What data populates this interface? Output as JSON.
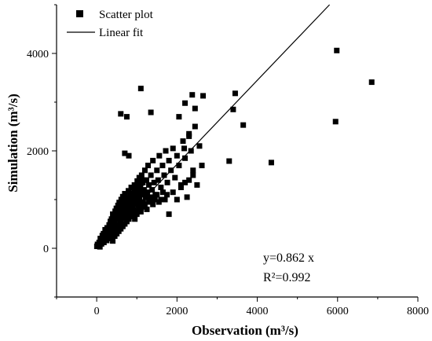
{
  "chart_data": {
    "type": "scatter",
    "xlabel": "Observation (m³/s)",
    "ylabel": "Simulation (m³/s)",
    "xlim": [
      -1000,
      8000
    ],
    "ylim": [
      -1000,
      5000
    ],
    "x_ticks": [
      0,
      2000,
      4000,
      6000,
      8000
    ],
    "y_ticks": [
      0,
      2000,
      4000
    ],
    "grid": false,
    "legend_position": "top-left",
    "legend": {
      "scatter_label": "Scatter plot",
      "fit_label": "Linear fit"
    },
    "fit": {
      "slope": 0.862,
      "equation": "y=0.862 x",
      "r2": "R²=0.992"
    },
    "series": [
      {
        "name": "Scatter plot",
        "marker": "square",
        "color": "#000000",
        "points": [
          [
            5,
            40
          ],
          [
            20,
            80
          ],
          [
            40,
            60
          ],
          [
            60,
            120
          ],
          [
            80,
            30
          ],
          [
            90,
            200
          ],
          [
            110,
            150
          ],
          [
            120,
            90
          ],
          [
            140,
            260
          ],
          [
            150,
            180
          ],
          [
            170,
            300
          ],
          [
            180,
            120
          ],
          [
            200,
            230
          ],
          [
            210,
            380
          ],
          [
            230,
            310
          ],
          [
            250,
            160
          ],
          [
            260,
            420
          ],
          [
            280,
            350
          ],
          [
            300,
            270
          ],
          [
            310,
            480
          ],
          [
            330,
            400
          ],
          [
            340,
            550
          ],
          [
            360,
            310
          ],
          [
            370,
            600
          ],
          [
            390,
            460
          ],
          [
            400,
            700
          ],
          [
            420,
            530
          ],
          [
            430,
            380
          ],
          [
            450,
            650
          ],
          [
            460,
            760
          ],
          [
            480,
            590
          ],
          [
            490,
            820
          ],
          [
            500,
            450
          ],
          [
            520,
            700
          ],
          [
            530,
            880
          ],
          [
            550,
            620
          ],
          [
            560,
            940
          ],
          [
            580,
            780
          ],
          [
            590,
            520
          ],
          [
            610,
            1000
          ],
          [
            620,
            840
          ],
          [
            640,
            690
          ],
          [
            650,
            1060
          ],
          [
            670,
            900
          ],
          [
            680,
            760
          ],
          [
            700,
            1120
          ],
          [
            710,
            960
          ],
          [
            730,
            820
          ],
          [
            740,
            600
          ],
          [
            760,
            1020
          ],
          [
            770,
            880
          ],
          [
            790,
            1180
          ],
          [
            800,
            700
          ],
          [
            820,
            950
          ],
          [
            830,
            1080
          ],
          [
            850,
            800
          ],
          [
            860,
            1250
          ],
          [
            880,
            1000
          ],
          [
            890,
            860
          ],
          [
            910,
            1130
          ],
          [
            920,
            680
          ],
          [
            940,
            1300
          ],
          [
            950,
            950
          ],
          [
            970,
            1200
          ],
          [
            980,
            780
          ],
          [
            1000,
            1050
          ],
          [
            1010,
            1380
          ],
          [
            1030,
            900
          ],
          [
            1040,
            1150
          ],
          [
            1060,
            1450
          ],
          [
            1070,
            1000
          ],
          [
            1090,
            1250
          ],
          [
            1100,
            820
          ],
          [
            1120,
            1500
          ],
          [
            1130,
            1100
          ],
          [
            1150,
            1350
          ],
          [
            1160,
            950
          ],
          [
            1180,
            1200
          ],
          [
            1200,
            1600
          ],
          [
            1220,
            1050
          ],
          [
            1240,
            1400
          ],
          [
            1260,
            1150
          ],
          [
            1280,
            1700
          ],
          [
            1300,
            1300
          ],
          [
            1320,
            1000
          ],
          [
            1350,
            1500
          ],
          [
            1380,
            1200
          ],
          [
            1400,
            1800
          ],
          [
            1430,
            1350
          ],
          [
            1460,
            1100
          ],
          [
            1500,
            1600
          ],
          [
            1530,
            1400
          ],
          [
            1560,
            1900
          ],
          [
            1600,
            1250
          ],
          [
            1640,
            1700
          ],
          [
            1680,
            1500
          ],
          [
            1720,
            2000
          ],
          [
            1760,
            1350
          ],
          [
            1800,
            1800
          ],
          [
            1850,
            1600
          ],
          [
            1900,
            2050
          ],
          [
            1950,
            1450
          ],
          [
            2000,
            1900
          ],
          [
            2050,
            1700
          ],
          [
            2100,
            1300
          ],
          [
            2150,
            2200
          ],
          [
            2200,
            1850
          ],
          [
            2250,
            1050
          ],
          [
            2300,
            2300
          ],
          [
            2350,
            2000
          ],
          [
            2400,
            1600
          ],
          [
            2450,
            2500
          ],
          [
            2500,
            1300
          ],
          [
            2560,
            2100
          ],
          [
            2620,
            1700
          ],
          [
            400,
            150
          ],
          [
            450,
            250
          ],
          [
            500,
            300
          ],
          [
            550,
            350
          ],
          [
            600,
            400
          ],
          [
            650,
            450
          ],
          [
            700,
            500
          ],
          [
            750,
            550
          ],
          [
            800,
            600
          ],
          [
            850,
            650
          ],
          [
            900,
            720
          ],
          [
            950,
            600
          ],
          [
            1000,
            700
          ],
          [
            1050,
            800
          ],
          [
            1100,
            750
          ],
          [
            1150,
            850
          ],
          [
            1200,
            900
          ],
          [
            1250,
            800
          ],
          [
            1300,
            950
          ],
          [
            1350,
            1050
          ],
          [
            1400,
            900
          ],
          [
            1450,
            1000
          ],
          [
            1500,
            1100
          ],
          [
            1550,
            950
          ],
          [
            1600,
            1000
          ],
          [
            1650,
            1150
          ],
          [
            1700,
            1000
          ],
          [
            1750,
            1100
          ],
          [
            1800,
            700
          ],
          [
            1900,
            1150
          ],
          [
            2000,
            1000
          ],
          [
            2100,
            1250
          ],
          [
            2200,
            1350
          ],
          [
            2300,
            1400
          ],
          [
            2400,
            1500
          ],
          [
            300,
            200
          ],
          [
            320,
            420
          ],
          [
            350,
            250
          ],
          [
            380,
            500
          ],
          [
            410,
            320
          ],
          [
            440,
            580
          ],
          [
            470,
            420
          ],
          [
            510,
            650
          ],
          [
            540,
            480
          ],
          [
            570,
            720
          ],
          [
            600,
            560
          ],
          [
            630,
            800
          ],
          [
            660,
            620
          ],
          [
            690,
            880
          ],
          [
            720,
            700
          ],
          [
            750,
            940
          ],
          [
            780,
            760
          ],
          [
            810,
            1000
          ],
          [
            840,
            840
          ],
          [
            870,
            1080
          ],
          [
            900,
            900
          ],
          [
            930,
            1150
          ],
          [
            960,
            980
          ],
          [
            990,
            1220
          ],
          [
            1020,
            1060
          ],
          [
            1050,
            1280
          ],
          [
            1080,
            1120
          ],
          [
            1110,
            1340
          ],
          [
            1140,
            1180
          ],
          [
            1170,
            1400
          ],
          [
            600,
            2760
          ],
          [
            750,
            2700
          ],
          [
            700,
            1950
          ],
          [
            800,
            1900
          ],
          [
            1100,
            3280
          ],
          [
            1350,
            2790
          ],
          [
            2050,
            2700
          ],
          [
            2200,
            2980
          ],
          [
            2380,
            3150
          ],
          [
            2450,
            2870
          ],
          [
            2650,
            3130
          ],
          [
            2300,
            2350
          ],
          [
            2180,
            2050
          ],
          [
            3300,
            1790
          ],
          [
            3400,
            2850
          ],
          [
            3450,
            3180
          ],
          [
            3650,
            2530
          ],
          [
            4350,
            1760
          ],
          [
            5950,
            2600
          ],
          [
            5980,
            4060
          ],
          [
            6850,
            3410
          ]
        ]
      }
    ]
  }
}
